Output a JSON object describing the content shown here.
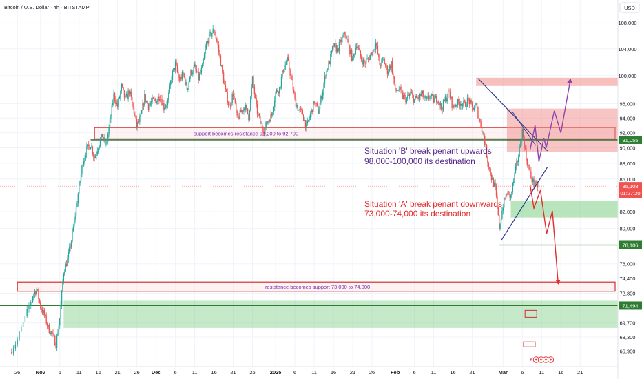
{
  "title": "Bitcoin / U.S. Dollar · 4h · BITSTAMP",
  "currency_button": "USD",
  "colors": {
    "up": "#26a69a",
    "down": "#ef5350",
    "purple": "#8e44ad",
    "red": "#e52b2b",
    "green": "#26a69a",
    "navy": "#2b3a8c",
    "red_zone": "#f28b8b",
    "green_zone": "#7fcf87"
  },
  "chart_data": {
    "type": "candlestick",
    "yscale": "log",
    "ylim": [
      65800,
      111000
    ],
    "y_ticks": [
      66900,
      68300,
      69700,
      72800,
      74400,
      76000,
      80000,
      82000,
      86000,
      88000,
      90000,
      92000,
      94000,
      96000,
      100000,
      104000,
      108000
    ],
    "x_ticks": [
      {
        "label": "26",
        "day": -6
      },
      {
        "label": "Nov",
        "day": 0
      },
      {
        "label": "6",
        "day": 5
      },
      {
        "label": "11",
        "day": 10
      },
      {
        "label": "16",
        "day": 15
      },
      {
        "label": "21",
        "day": 20
      },
      {
        "label": "26",
        "day": 25
      },
      {
        "label": "Dec",
        "day": 30
      },
      {
        "label": "6",
        "day": 35
      },
      {
        "label": "11",
        "day": 40
      },
      {
        "label": "16",
        "day": 45
      },
      {
        "label": "21",
        "day": 50
      },
      {
        "label": "26",
        "day": 55
      },
      {
        "label": "2025",
        "day": 61
      },
      {
        "label": "6",
        "day": 66
      },
      {
        "label": "11",
        "day": 71
      },
      {
        "label": "16",
        "day": 76
      },
      {
        "label": "21",
        "day": 81
      },
      {
        "label": "26",
        "day": 86
      },
      {
        "label": "Feb",
        "day": 92
      },
      {
        "label": "6",
        "day": 97
      },
      {
        "label": "11",
        "day": 102
      },
      {
        "label": "16",
        "day": 107
      },
      {
        "label": "21",
        "day": 112
      },
      {
        "label": "Mar",
        "day": 120
      },
      {
        "label": "6",
        "day": 125
      },
      {
        "label": "11",
        "day": 130
      },
      {
        "label": "16",
        "day": 135
      },
      {
        "label": "21",
        "day": 140
      }
    ],
    "xlim": [
      -8,
      148
    ],
    "price_path": [
      [
        -8,
        66800
      ],
      [
        -6,
        68000
      ],
      [
        -4,
        70200
      ],
      [
        -2,
        72600
      ],
      [
        -1,
        73200
      ],
      [
        0,
        71400
      ],
      [
        1,
        70500
      ],
      [
        2,
        69200
      ],
      [
        3,
        68600
      ],
      [
        4,
        67600
      ],
      [
        5,
        70200
      ],
      [
        6,
        75200
      ],
      [
        7,
        76400
      ],
      [
        8,
        78600
      ],
      [
        9,
        81600
      ],
      [
        10,
        85000
      ],
      [
        11,
        88200
      ],
      [
        12,
        89800
      ],
      [
        13,
        90500
      ],
      [
        14,
        88700
      ],
      [
        15,
        90300
      ],
      [
        16,
        91600
      ],
      [
        17,
        90200
      ],
      [
        18,
        93400
      ],
      [
        19,
        97200
      ],
      [
        20,
        95600
      ],
      [
        21,
        98400
      ],
      [
        22,
        96500
      ],
      [
        23,
        97800
      ],
      [
        24,
        95400
      ],
      [
        25,
        92800
      ],
      [
        26,
        94100
      ],
      [
        27,
        96900
      ],
      [
        28,
        95700
      ],
      [
        29,
        96300
      ],
      [
        30,
        96400
      ],
      [
        31,
        97200
      ],
      [
        32,
        95500
      ],
      [
        33,
        96300
      ],
      [
        34,
        99800
      ],
      [
        35,
        101700
      ],
      [
        36,
        99300
      ],
      [
        37,
        100200
      ],
      [
        38,
        98100
      ],
      [
        39,
        100400
      ],
      [
        40,
        101200
      ],
      [
        41,
        99600
      ],
      [
        42,
        101200
      ],
      [
        43,
        104600
      ],
      [
        44,
        106100
      ],
      [
        45,
        106900
      ],
      [
        46,
        104500
      ],
      [
        47,
        101100
      ],
      [
        48,
        97700
      ],
      [
        49,
        95600
      ],
      [
        50,
        97500
      ],
      [
        51,
        93800
      ],
      [
        52,
        94800
      ],
      [
        53,
        95700
      ],
      [
        54,
        94200
      ],
      [
        55,
        99400
      ],
      [
        56,
        95400
      ],
      [
        57,
        93300
      ],
      [
        58,
        92400
      ],
      [
        59,
        93700
      ],
      [
        60,
        94400
      ],
      [
        61,
        97600
      ],
      [
        62,
        98200
      ],
      [
        63,
        100900
      ],
      [
        64,
        102300
      ],
      [
        65,
        99800
      ],
      [
        66,
        96400
      ],
      [
        67,
        95100
      ],
      [
        68,
        94600
      ],
      [
        69,
        92700
      ],
      [
        70,
        94500
      ],
      [
        71,
        96300
      ],
      [
        72,
        94900
      ],
      [
        73,
        97200
      ],
      [
        74,
        100400
      ],
      [
        75,
        102100
      ],
      [
        76,
        104500
      ],
      [
        77,
        103800
      ],
      [
        78,
        105200
      ],
      [
        79,
        106400
      ],
      [
        80,
        104200
      ],
      [
        81,
        102300
      ],
      [
        82,
        104900
      ],
      [
        83,
        102700
      ],
      [
        84,
        101800
      ],
      [
        85,
        102500
      ],
      [
        86,
        103500
      ],
      [
        87,
        104800
      ],
      [
        88,
        101600
      ],
      [
        89,
        102300
      ],
      [
        90,
        100600
      ],
      [
        91,
        101800
      ],
      [
        92,
        97700
      ],
      [
        93,
        98100
      ],
      [
        94,
        97000
      ],
      [
        95,
        96600
      ],
      [
        96,
        97400
      ],
      [
        97,
        96500
      ],
      [
        98,
        96900
      ],
      [
        99,
        97300
      ],
      [
        100,
        96300
      ],
      [
        101,
        97100
      ],
      [
        102,
        96500
      ],
      [
        103,
        96800
      ],
      [
        104,
        95300
      ],
      [
        105,
        96600
      ],
      [
        106,
        97500
      ],
      [
        107,
        95400
      ],
      [
        108,
        96100
      ],
      [
        109,
        96200
      ],
      [
        110,
        95800
      ],
      [
        111,
        96600
      ],
      [
        112,
        95300
      ],
      [
        113,
        95700
      ],
      [
        114,
        93400
      ],
      [
        115,
        91600
      ],
      [
        116,
        88300
      ],
      [
        117,
        86200
      ],
      [
        118,
        84700
      ],
      [
        119,
        80100
      ],
      [
        120,
        82800
      ],
      [
        121,
        84300
      ],
      [
        122,
        83800
      ],
      [
        123,
        86500
      ],
      [
        124,
        89000
      ],
      [
        125,
        92300
      ],
      [
        126,
        88700
      ],
      [
        127,
        86600
      ],
      [
        128,
        85300
      ],
      [
        129,
        85100
      ]
    ],
    "annotations": {
      "resistance_zone_label": "support becomes resistance 91,200 to 92,700",
      "support_zone_label": "resistance becomes support 73,000 to 74,000",
      "scenario_b_line1": "Situation 'B' break penant upwards",
      "scenario_b_line2": "98,000-100,000 its destination",
      "scenario_a_line1": "Situation 'A' break penant downwards",
      "scenario_a_line2": "73,000-74,000 its destination"
    },
    "zones": {
      "resistance": [
        91200,
        92700
      ],
      "support": [
        73000,
        74000
      ],
      "green_lower": [
        69200,
        72000
      ],
      "red_upper_top": [
        98500,
        99700
      ],
      "red_upper_mid": [
        89500,
        95300
      ],
      "green_mid": [
        81300,
        83300
      ]
    },
    "levels": {
      "green_line": 91055,
      "current": 85108,
      "lower_green": 78106,
      "bottom_green": 71494
    },
    "price_tags": {
      "level_91": "91,055",
      "current_price": "85,108",
      "countdown": "01:27:20",
      "level_78": "78,106",
      "level_71": "71,494"
    }
  }
}
